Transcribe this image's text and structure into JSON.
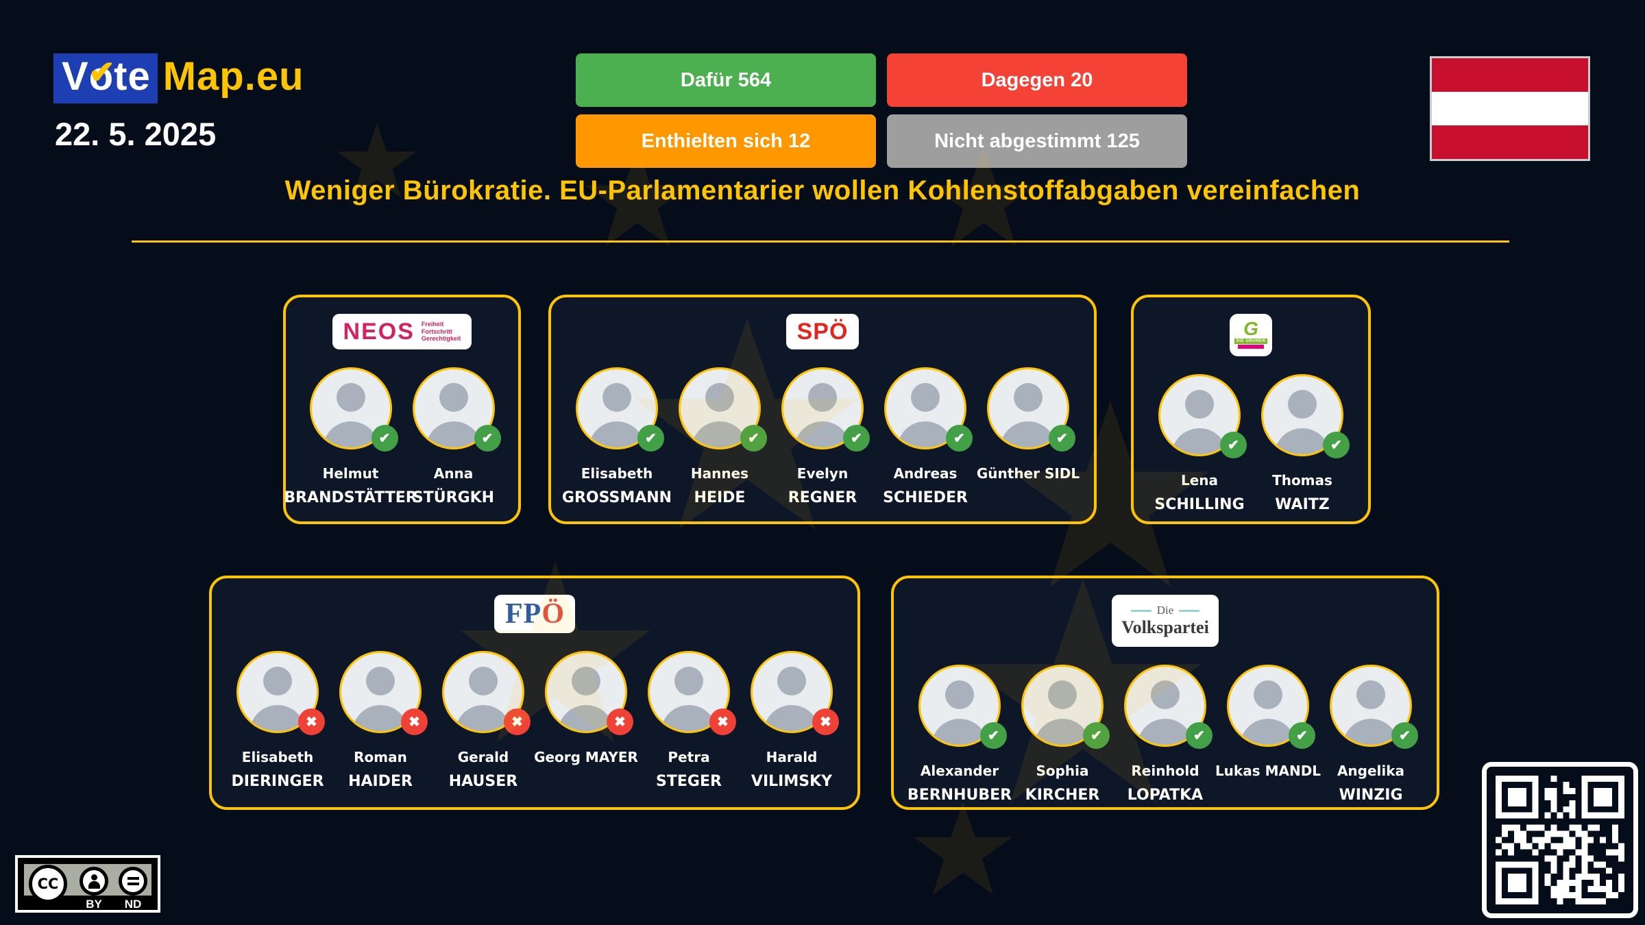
{
  "header": {
    "logo": {
      "vote": "Vote",
      "map": "Map.eu",
      "check_icon": "✔"
    },
    "date": "22. 5. 2025",
    "results": [
      {
        "label": "Dafür 564",
        "color": "#4CAF50"
      },
      {
        "label": "Dagegen 20",
        "color": "#F44336"
      },
      {
        "label": "Enthielten sich 12",
        "color": "#FF9800"
      },
      {
        "label": "Nicht abgestimmt 125",
        "color": "#9E9E9E"
      }
    ],
    "flag": {
      "country": "austria",
      "red": "#C8102E",
      "white": "#FFFFFF"
    }
  },
  "title": "Weniger Bürokratie. EU-Parlamentarier wollen Kohlenstoffabgaben vereinfachen",
  "accent_color": "#FFC400",
  "vote_icons": {
    "yes": "✔",
    "no": "✖"
  },
  "badge_colors": {
    "yes": "#43A047",
    "no": "#EF4136"
  },
  "parties": [
    {
      "id": "neos",
      "logo_text": "NEOS",
      "tagline": [
        "Freiheit",
        "Fortschritt",
        "Gerechtigkeit"
      ],
      "brand_color": "#D5215E",
      "members": [
        {
          "lines": [
            "Helmut",
            "BRANDSTÄTTER"
          ],
          "vote": "yes"
        },
        {
          "lines": [
            "Anna",
            "STÜRGKH"
          ],
          "vote": "yes"
        }
      ]
    },
    {
      "id": "spo",
      "logo_text": "SPÖ",
      "brand_color": "#E3261D",
      "members": [
        {
          "lines": [
            "Elisabeth",
            "GROSSMANN"
          ],
          "vote": "yes"
        },
        {
          "lines": [
            "Hannes",
            "HEIDE"
          ],
          "vote": "yes"
        },
        {
          "lines": [
            "Evelyn",
            "REGNER"
          ],
          "vote": "yes"
        },
        {
          "lines": [
            "Andreas",
            "SCHIEDER"
          ],
          "vote": "yes"
        },
        {
          "lines": [
            "Günther SIDL"
          ],
          "vote": "yes"
        }
      ]
    },
    {
      "id": "gruene",
      "logo_g": "G",
      "logo_band": "DIE GRÜNEN",
      "brand_color": "#7FB827",
      "brand_color2": "#E6007E",
      "members": [
        {
          "lines": [
            "Lena",
            "SCHILLING"
          ],
          "vote": "yes"
        },
        {
          "lines": [
            "Thomas",
            "WAITZ"
          ],
          "vote": "yes"
        }
      ]
    },
    {
      "id": "fpo",
      "logo_fp": "FP",
      "logo_o": "Ö",
      "brand_color": "#2F5D9E",
      "brand_color2": "#DE4B43",
      "members": [
        {
          "lines": [
            "Elisabeth",
            "DIERINGER"
          ],
          "vote": "no"
        },
        {
          "lines": [
            "Roman",
            "HAIDER"
          ],
          "vote": "no"
        },
        {
          "lines": [
            "Gerald",
            "HAUSER"
          ],
          "vote": "no"
        },
        {
          "lines": [
            "Georg MAYER"
          ],
          "vote": "no"
        },
        {
          "lines": [
            "Petra",
            "STEGER"
          ],
          "vote": "no"
        },
        {
          "lines": [
            "Harald",
            "VILIMSKY"
          ],
          "vote": "no"
        }
      ]
    },
    {
      "id": "ovp",
      "logo_die": "Die",
      "logo_main": "Volkspartei",
      "brand_color": "#9BD3DA",
      "members": [
        {
          "lines": [
            "Alexander",
            "BERNHUBER"
          ],
          "vote": "yes"
        },
        {
          "lines": [
            "Sophia",
            "KIRCHER"
          ],
          "vote": "yes"
        },
        {
          "lines": [
            "Reinhold",
            "LOPATKA"
          ],
          "vote": "yes"
        },
        {
          "lines": [
            "Lukas MANDL"
          ],
          "vote": "yes"
        },
        {
          "lines": [
            "Angelika",
            "WINZIG"
          ],
          "vote": "yes"
        }
      ]
    }
  ],
  "license": {
    "cc": "CC",
    "by": "BY",
    "nd": "ND"
  }
}
